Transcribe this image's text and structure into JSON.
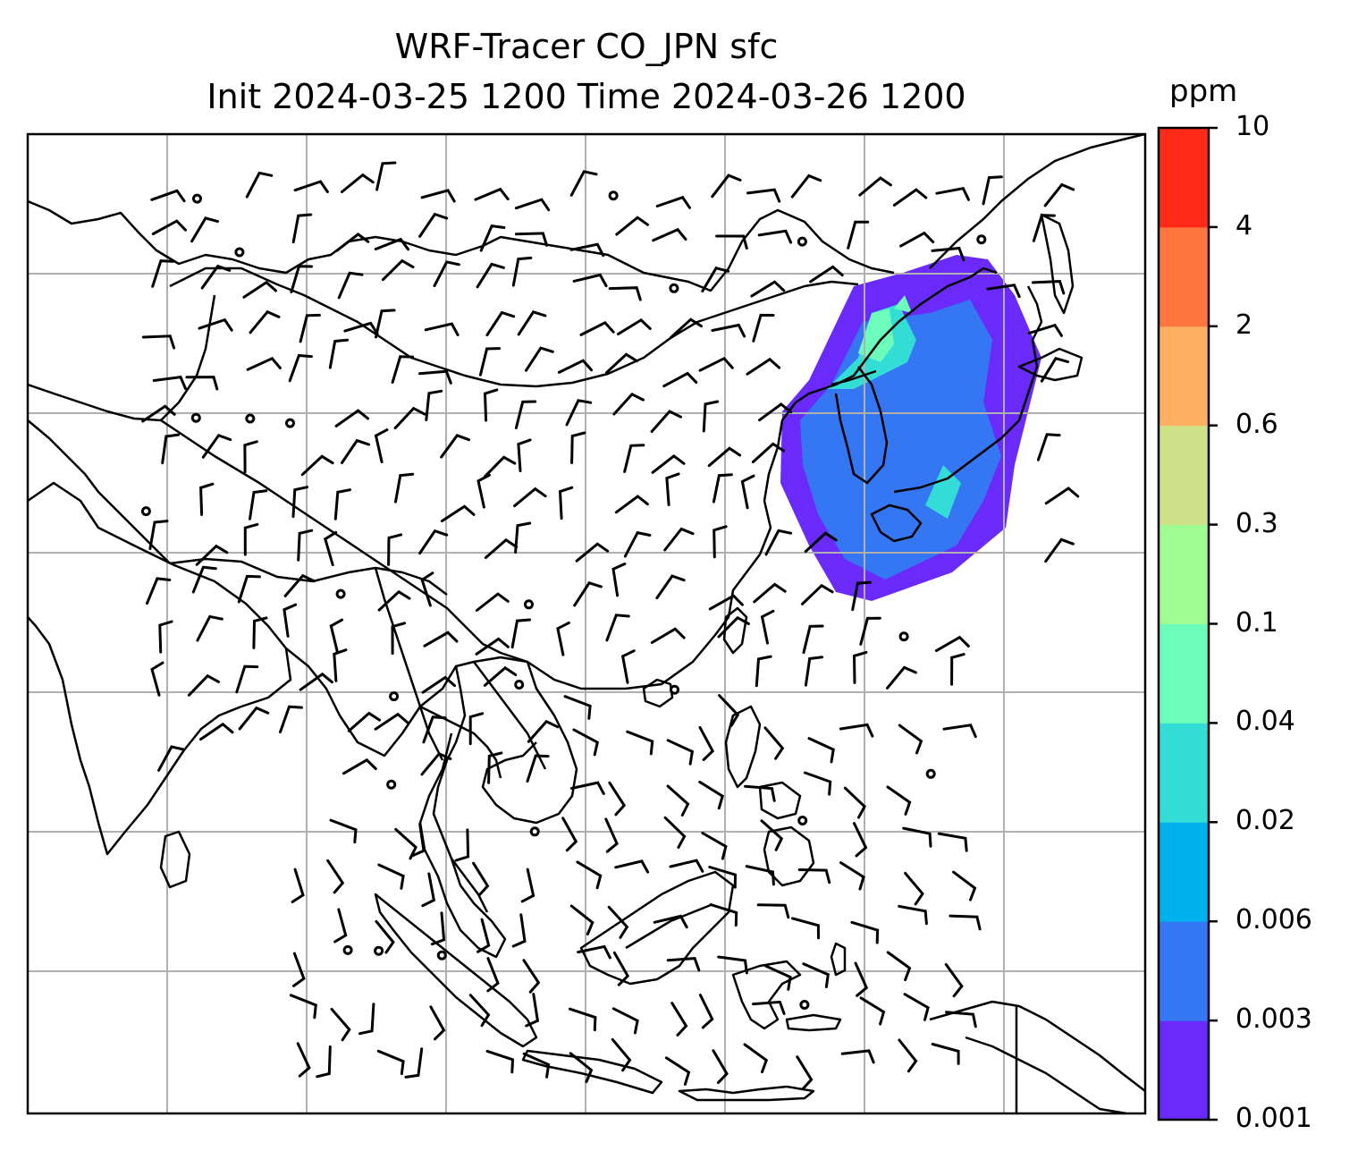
{
  "title": {
    "line1": "WRF-Tracer CO_JPN sfc",
    "line2": "Init 2024-03-25 1200 Time 2024-03-26 1200"
  },
  "colorbar": {
    "unit": "ppm",
    "levels": [
      "0.001",
      "0.003",
      "0.006",
      "0.02",
      "0.04",
      "0.1",
      "0.3",
      "0.6",
      "2",
      "4",
      "10"
    ],
    "colors": [
      "#6a2bfa",
      "#3576f2",
      "#00b0ec",
      "#33ddd5",
      "#6cfcbc",
      "#9efc92",
      "#cfe28a",
      "#fdb062",
      "#ff7640",
      "#ff2a18"
    ]
  },
  "map": {
    "projection": "PlateCarree",
    "gridlines": true,
    "plume_color_levels": [
      "0.001–0.003",
      "0.003–0.006",
      "0.02–0.04",
      "0.04–0.1"
    ],
    "wind_barbs": true
  }
}
